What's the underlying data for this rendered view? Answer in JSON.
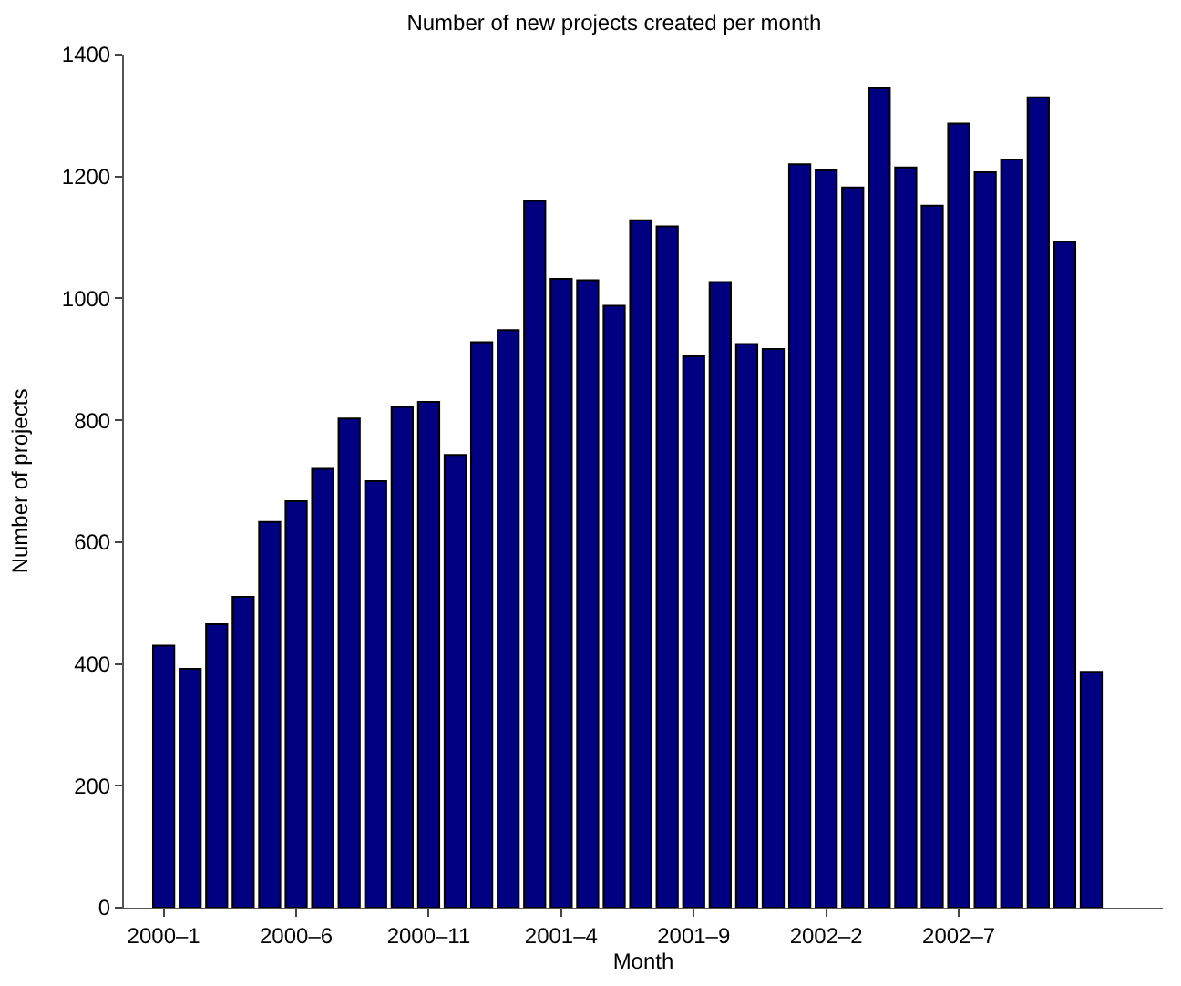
{
  "chart_data": {
    "type": "bar",
    "title": "Number of new projects created per month",
    "xlabel": "Month",
    "ylabel": "Number of projects",
    "categories": [
      "2000–1",
      null,
      null,
      null,
      null,
      "2000–6",
      null,
      null,
      null,
      null,
      "2000–11",
      null,
      null,
      null,
      null,
      "2001–4",
      null,
      null,
      null,
      null,
      "2001–9",
      null,
      null,
      null,
      null,
      "2002–2",
      null,
      null,
      null,
      null,
      "2002–7",
      null,
      null,
      null,
      null,
      null
    ],
    "values": [
      430,
      392,
      465,
      510,
      633,
      667,
      720,
      803,
      700,
      822,
      830,
      743,
      928,
      948,
      1160,
      1032,
      1030,
      988,
      1128,
      1118,
      905,
      1027,
      925,
      917,
      1220,
      1210,
      1182,
      1345,
      1215,
      1152,
      1287,
      1207,
      1228,
      1330,
      1093,
      387
    ],
    "color": "#000080",
    "ylim": [
      0,
      1400
    ],
    "yticks": [
      0,
      200,
      400,
      600,
      800,
      1000,
      1200,
      1400
    ]
  }
}
